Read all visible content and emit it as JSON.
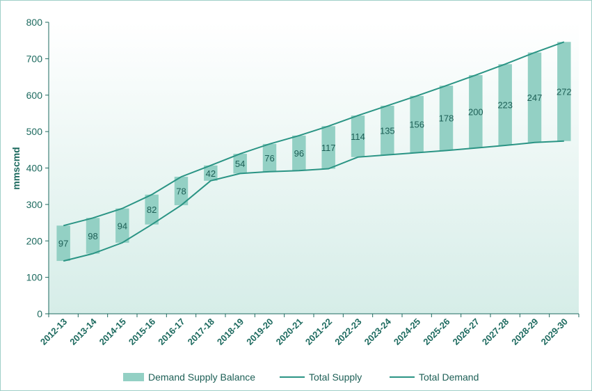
{
  "chart_data": {
    "type": "bar",
    "ylabel": "mmscmd",
    "ylim": [
      0,
      800
    ],
    "yticks": [
      0,
      100,
      200,
      300,
      400,
      500,
      600,
      700,
      800
    ],
    "categories": [
      "2012-13",
      "2013-14",
      "2014-15",
      "2015-16",
      "2016-17",
      "2017-18",
      "2018-19",
      "2019-20",
      "2020-21",
      "2021-22",
      "2022-23",
      "2023-24",
      "2024-25",
      "2025-26",
      "2026-27",
      "2027-28",
      "2028-29",
      "2029-30"
    ],
    "series": [
      {
        "name": "Demand Supply Balance",
        "values": [
          97,
          98,
          94,
          82,
          78,
          42,
          54,
          76,
          96,
          117,
          114,
          135,
          156,
          178,
          200,
          223,
          247,
          272
        ]
      },
      {
        "name": "Total Supply",
        "values": [
          145,
          165,
          195,
          245,
          298,
          365,
          385,
          390,
          393,
          398,
          430,
          436,
          442,
          448,
          455,
          462,
          470,
          474
        ]
      },
      {
        "name": "Total Demand",
        "values": [
          242,
          263,
          289,
          327,
          376,
          407,
          439,
          466,
          489,
          515,
          544,
          571,
          598,
          626,
          655,
          685,
          717,
          746
        ]
      }
    ],
    "grid": false,
    "legend": "bottom",
    "colors": {
      "balance": "#93d0c4",
      "line": "#2a9484",
      "axis": "#1d6a5f",
      "bg_top": "#ffffff",
      "bg_bottom": "#d6ede8"
    }
  }
}
